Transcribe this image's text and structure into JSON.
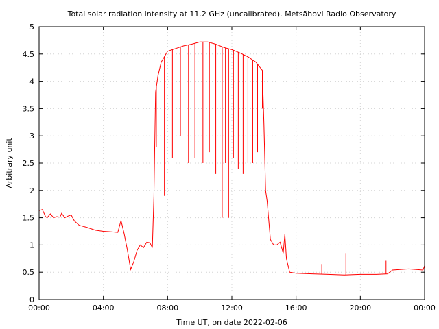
{
  "chart_data": {
    "type": "line",
    "title": "Total solar radiation intensity at 11.2 GHz (uncalibrated). Metsähovi Radio Observatory",
    "xlabel": "Time UT, on date 2022-02-06",
    "ylabel": "Arbitrary unit",
    "xlim": [
      0,
      24
    ],
    "ylim": [
      0,
      5
    ],
    "x_ticks": [
      0,
      4,
      8,
      12,
      16,
      20,
      24
    ],
    "x_tick_labels": [
      "00:00",
      "04:00",
      "08:00",
      "12:00",
      "16:00",
      "20:00",
      "00:00"
    ],
    "y_ticks": [
      0,
      0.5,
      1,
      1.5,
      2,
      2.5,
      3,
      3.5,
      4,
      4.5,
      5
    ],
    "y_tick_labels": [
      "0",
      "0.5",
      "1",
      "1.5",
      "2",
      "2.5",
      "3",
      "3.5",
      "4",
      "4.5",
      "5"
    ],
    "grid": true,
    "legend": "none",
    "series": [
      {
        "color": "#ff0000",
        "x": [
          0,
          0.2,
          0.4,
          0.5,
          0.7,
          0.9,
          1.1,
          1.3,
          1.4,
          1.6,
          1.8,
          2.0,
          2.2,
          2.5,
          3.0,
          3.5,
          4.0,
          4.5,
          4.9,
          5.1,
          5.3,
          5.5,
          5.7,
          5.9,
          6.1,
          6.3,
          6.5,
          6.7,
          6.9,
          7.05,
          7.15,
          7.25,
          7.4,
          7.6,
          8.0,
          8.5,
          9.0,
          9.5,
          10.0,
          10.5,
          11.0,
          11.5,
          12.0,
          12.5,
          13.0,
          13.5,
          13.9,
          14.0,
          14.1,
          14.2,
          14.4,
          14.6,
          14.8,
          15.0,
          15.2,
          15.3,
          15.4,
          15.6,
          16.0,
          17.0,
          18.0,
          19.0,
          20.0,
          21.0,
          21.7,
          22.0,
          23.0,
          23.9,
          24.0
        ],
        "values": [
          1.63,
          1.65,
          1.52,
          1.5,
          1.57,
          1.5,
          1.52,
          1.51,
          1.58,
          1.5,
          1.53,
          1.55,
          1.44,
          1.36,
          1.32,
          1.27,
          1.25,
          1.24,
          1.23,
          1.45,
          1.2,
          0.9,
          0.55,
          0.7,
          0.9,
          1.0,
          0.95,
          1.05,
          1.04,
          0.95,
          1.9,
          3.8,
          4.1,
          4.35,
          4.55,
          4.6,
          4.65,
          4.68,
          4.72,
          4.72,
          4.68,
          4.62,
          4.58,
          4.52,
          4.45,
          4.35,
          4.2,
          3.2,
          2.0,
          1.8,
          1.1,
          1.0,
          1.0,
          1.05,
          0.85,
          1.2,
          0.75,
          0.5,
          0.48,
          0.47,
          0.46,
          0.45,
          0.46,
          0.46,
          0.47,
          0.54,
          0.56,
          0.54,
          0.62
        ]
      }
    ],
    "dips": {
      "x": [
        7.3,
        7.8,
        8.3,
        8.8,
        9.3,
        9.7,
        10.2,
        10.6,
        11.0,
        11.4,
        11.6,
        11.8,
        12.1,
        12.4,
        12.7,
        13.0,
        13.3,
        13.6,
        13.9
      ],
      "values": [
        2.8,
        1.9,
        2.6,
        3.0,
        2.5,
        2.6,
        2.5,
        2.7,
        2.3,
        1.5,
        2.5,
        1.5,
        2.6,
        2.4,
        2.3,
        2.5,
        2.5,
        2.7,
        3.5
      ]
    },
    "spikes": {
      "x": [
        17.6,
        19.1,
        21.6
      ],
      "values": [
        0.65,
        0.85,
        0.71
      ]
    }
  }
}
